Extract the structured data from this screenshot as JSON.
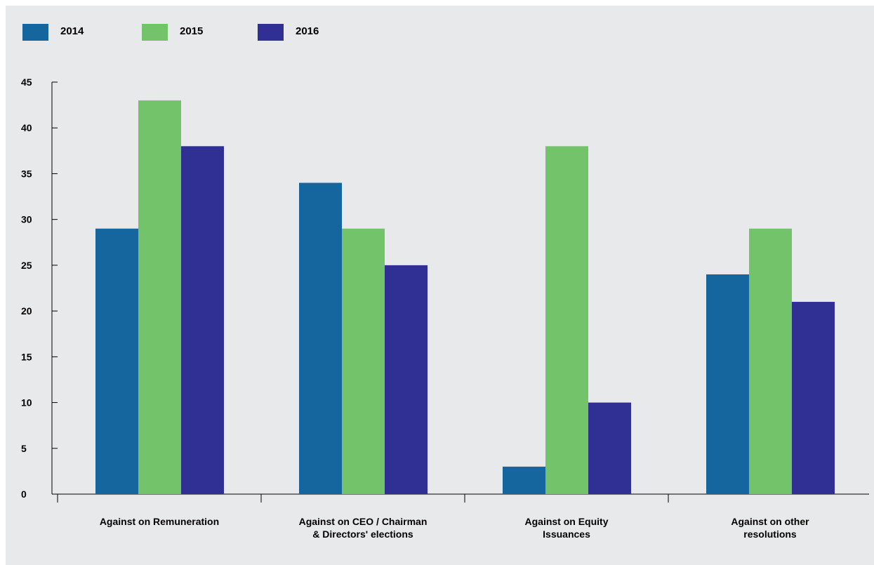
{
  "colors": {
    "background": "#e8e9eb",
    "axis": "#000000"
  },
  "chart_data": {
    "type": "bar",
    "title": "",
    "xlabel": "",
    "ylabel": "",
    "ylim": [
      0,
      45
    ],
    "yticks": [
      0,
      5,
      10,
      15,
      20,
      25,
      30,
      35,
      40,
      45
    ],
    "grid": false,
    "legend_position": "top-left",
    "categories": [
      [
        "Against on Remuneration"
      ],
      [
        "Against on CEO / Chairman",
        "& Directors' elections"
      ],
      [
        "Against on Equity",
        "Issuances"
      ],
      [
        "Against on other",
        "resolutions"
      ]
    ],
    "series": [
      {
        "name": "2014",
        "color": "#15659f",
        "values": [
          29,
          34,
          3,
          24
        ]
      },
      {
        "name": "2015",
        "color": "#73c36a",
        "values": [
          43,
          29,
          38,
          29
        ]
      },
      {
        "name": "2016",
        "color": "#2f2f94",
        "values": [
          38,
          25,
          10,
          21
        ]
      }
    ]
  }
}
